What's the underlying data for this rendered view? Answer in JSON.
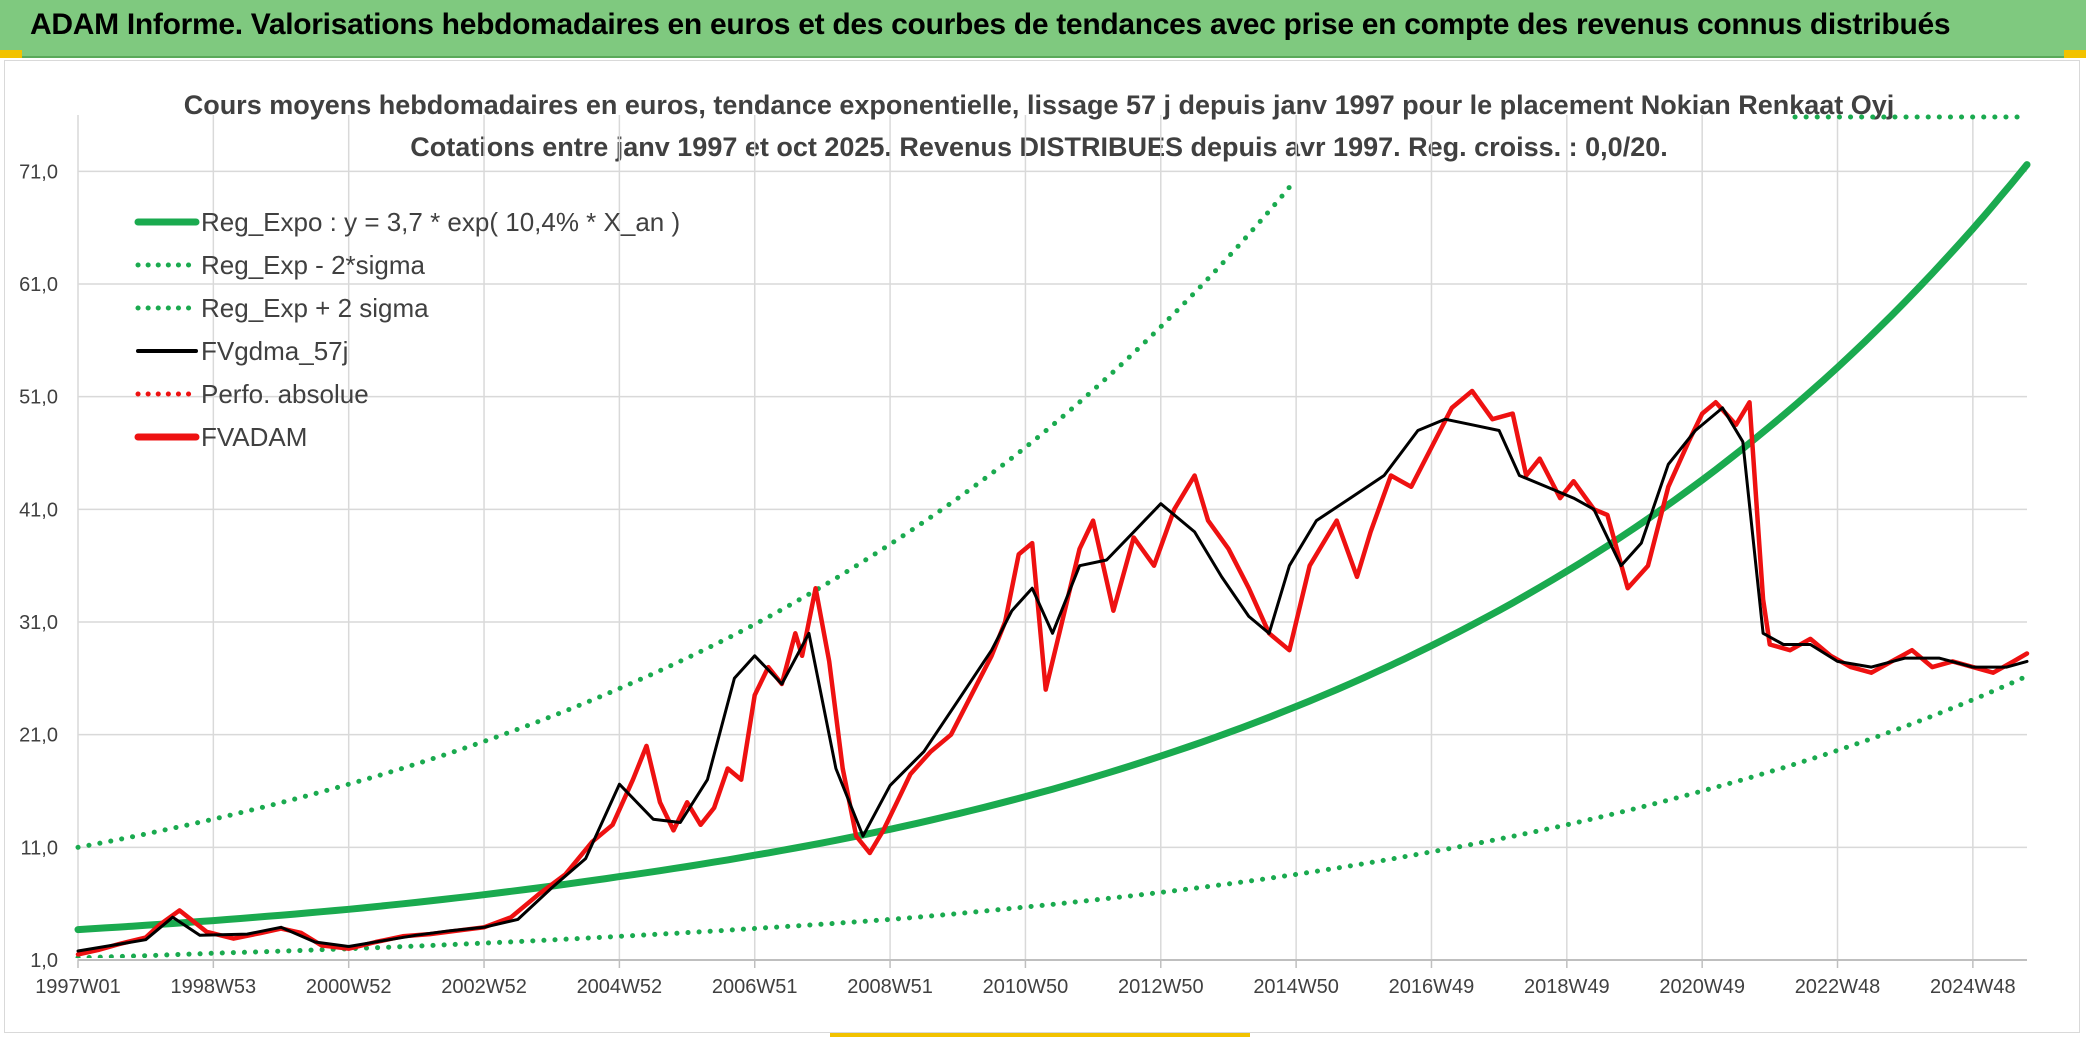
{
  "header": {
    "title": "ADAM Informe. Valorisations hebdomadaires en euros et des courbes de tendances avec prise en compte des revenus connus distribués"
  },
  "colors": {
    "header_bg": "#7fc97f",
    "reg_green": "#1aaa4f",
    "series_black": "#000000",
    "series_red": "#ee1111",
    "grid": "#d9d9d9",
    "accent": "#f2c200"
  },
  "chart_data": {
    "type": "line",
    "title": "Cours moyens hebdomadaires en euros, tendance exponentielle, lissage 57 j depuis janv 1997 pour le placement Nokian Renkaat Oyj",
    "subtitle": "Cotations entre janv 1997 et oct 2025. Revenus DISTRIBUES depuis avr 1997. Reg. croiss. : 0,0/20.",
    "x_range": [
      1997.0,
      2025.8
    ],
    "ylim": [
      1.0,
      76.0
    ],
    "y_ticks": [
      1.0,
      11.0,
      21.0,
      31.0,
      41.0,
      51.0,
      61.0,
      71.0
    ],
    "y_tick_labels": [
      "1,0",
      "11,0",
      "21,0",
      "31,0",
      "41,0",
      "51,0",
      "61,0",
      "71,0"
    ],
    "x_ticks": [
      1997.0,
      1999.0,
      2001.0,
      2003.0,
      2005.0,
      2007.0,
      2009.0,
      2011.0,
      2013.0,
      2015.0,
      2017.0,
      2019.0,
      2021.0,
      2023.0,
      2025.0
    ],
    "x_tick_labels": [
      "1997W01",
      "1998W53",
      "2000W52",
      "2002W52",
      "2004W52",
      "2006W51",
      "2008W51",
      "2010W50",
      "2012W50",
      "2014W50",
      "2016W49",
      "2018W49",
      "2020W49",
      "2022W48",
      "2024W48"
    ],
    "legend": [
      {
        "label": "Reg_Expo : y = 3,7 * exp( 10,4% *  X_an )",
        "style": "solid-thick",
        "color": "#1aaa4f"
      },
      {
        "label": "Reg_Exp - 2*sigma",
        "style": "dotted",
        "color": "#1aaa4f"
      },
      {
        "label": "Reg_Exp + 2 sigma",
        "style": "dotted",
        "color": "#1aaa4f"
      },
      {
        "label": "FVgdma_57j",
        "style": "solid",
        "color": "#000000"
      },
      {
        "label": "Perfo. absolue",
        "style": "dotted",
        "color": "#ee1111"
      },
      {
        "label": "FVADAM",
        "style": "solid-thick",
        "color": "#ee1111"
      }
    ],
    "series": [
      {
        "name": "Reg_Expo",
        "x": [
          1997.0,
          1999.0,
          2001.0,
          2003.0,
          2005.0,
          2007.0,
          2009.0,
          2011.0,
          2013.0,
          2015.0,
          2017.0,
          2019.0,
          2021.0,
          2023.0,
          2025.0,
          2025.8
        ],
        "values": [
          3.7,
          4.5,
          5.5,
          6.8,
          8.4,
          10.3,
          12.6,
          15.5,
          19.1,
          23.5,
          28.9,
          35.5,
          43.6,
          53.6,
          65.9,
          71.6
        ]
      },
      {
        "name": "Reg_Exp - 2*sigma",
        "x": [
          1997.0,
          1999.0,
          2001.0,
          2003.0,
          2005.0,
          2007.0,
          2009.0,
          2011.0,
          2013.0,
          2015.0,
          2017.0,
          2019.0,
          2021.0,
          2023.0,
          2025.0,
          2025.8
        ],
        "values": [
          1.2,
          1.6,
          2.0,
          2.5,
          3.1,
          3.8,
          4.6,
          5.7,
          7.0,
          8.6,
          10.6,
          13.0,
          16.0,
          19.6,
          24.1,
          26.2
        ]
      },
      {
        "name": "Reg_Exp + 2 sigma",
        "x": [
          1997.0,
          1999.0,
          2001.0,
          2003.0,
          2005.0,
          2007.0,
          2009.0,
          2011.0,
          2013.0,
          2015.0
        ],
        "values": [
          11.0,
          13.5,
          16.6,
          20.4,
          25.1,
          30.8,
          37.9,
          46.5,
          57.2,
          70.3
        ]
      },
      {
        "name": "FVgdma_57j",
        "x": [
          1997.0,
          1997.5,
          1998.0,
          1998.4,
          1998.8,
          1999.5,
          2000.0,
          2000.5,
          2001.0,
          2001.5,
          2002.0,
          2002.5,
          2003.0,
          2003.5,
          2004.0,
          2004.5,
          2005.0,
          2005.5,
          2005.9,
          2006.3,
          2006.7,
          2007.0,
          2007.4,
          2007.8,
          2008.2,
          2008.6,
          2009.0,
          2009.5,
          2010.0,
          2010.5,
          2010.8,
          2011.1,
          2011.4,
          2011.8,
          2012.2,
          2012.6,
          2013.0,
          2013.5,
          2013.9,
          2014.3,
          2014.6,
          2014.9,
          2015.3,
          2015.8,
          2016.3,
          2016.8,
          2017.2,
          2017.6,
          2018.0,
          2018.3,
          2018.7,
          2019.1,
          2019.4,
          2019.8,
          2020.1,
          2020.5,
          2020.9,
          2021.3,
          2021.6,
          2021.9,
          2022.2,
          2022.6,
          2023.0,
          2023.5,
          2024.0,
          2024.5,
          2025.0,
          2025.5,
          2025.8
        ],
        "values": [
          1.8,
          2.3,
          2.8,
          4.8,
          3.2,
          3.3,
          3.9,
          2.6,
          2.2,
          2.7,
          3.2,
          3.6,
          3.9,
          4.6,
          7.4,
          10.0,
          16.6,
          13.5,
          13.2,
          17.0,
          26.0,
          28.0,
          25.5,
          30.0,
          18.0,
          12.0,
          16.5,
          19.5,
          24.0,
          28.5,
          32.0,
          34.0,
          30.0,
          36.0,
          36.5,
          39.0,
          41.5,
          39.0,
          35.0,
          31.5,
          30.0,
          36.0,
          40.0,
          42.0,
          44.0,
          48.0,
          49.0,
          48.5,
          48.0,
          44.0,
          43.0,
          42.0,
          41.0,
          36.0,
          38.0,
          45.0,
          48.0,
          50.0,
          47.0,
          30.0,
          29.0,
          29.0,
          27.5,
          27.0,
          27.8,
          27.8,
          27.0,
          27.0,
          27.5
        ]
      },
      {
        "name": "FVADAM",
        "x": [
          1997.0,
          1997.3,
          1997.6,
          1998.0,
          1998.2,
          1998.5,
          1998.9,
          1999.3,
          1999.7,
          2000.0,
          2000.3,
          2000.6,
          2001.0,
          2001.4,
          2001.8,
          2002.2,
          2002.6,
          2003.0,
          2003.4,
          2003.8,
          2004.2,
          2004.6,
          2004.9,
          2005.2,
          2005.4,
          2005.6,
          2005.8,
          2006.0,
          2006.2,
          2006.4,
          2006.6,
          2006.8,
          2007.0,
          2007.2,
          2007.4,
          2007.6,
          2007.7,
          2007.9,
          2008.1,
          2008.3,
          2008.5,
          2008.7,
          2008.9,
          2009.1,
          2009.3,
          2009.6,
          2009.9,
          2010.2,
          2010.5,
          2010.7,
          2010.9,
          2011.1,
          2011.3,
          2011.5,
          2011.8,
          2012.0,
          2012.3,
          2012.6,
          2012.9,
          2013.2,
          2013.5,
          2013.7,
          2014.0,
          2014.3,
          2014.6,
          2014.9,
          2015.2,
          2015.4,
          2015.6,
          2015.9,
          2016.1,
          2016.4,
          2016.7,
          2017.0,
          2017.3,
          2017.6,
          2017.9,
          2018.2,
          2018.4,
          2018.6,
          2018.9,
          2019.1,
          2019.4,
          2019.6,
          2019.9,
          2020.2,
          2020.5,
          2020.8,
          2021.0,
          2021.2,
          2021.5,
          2021.7,
          2021.9,
          2022.0,
          2022.3,
          2022.6,
          2022.9,
          2023.2,
          2023.5,
          2023.8,
          2024.1,
          2024.4,
          2024.7,
          2025.0,
          2025.3,
          2025.6,
          2025.8
        ],
        "values": [
          1.5,
          1.9,
          2.4,
          3.0,
          4.1,
          5.4,
          3.5,
          2.9,
          3.4,
          3.8,
          3.4,
          2.3,
          2.0,
          2.6,
          3.1,
          3.3,
          3.6,
          3.9,
          4.8,
          6.8,
          8.6,
          11.5,
          13.0,
          17.0,
          20.0,
          15.0,
          12.5,
          15.0,
          13.0,
          14.5,
          18.0,
          17.0,
          24.5,
          27.0,
          25.5,
          30.0,
          28.0,
          34.0,
          27.5,
          18.0,
          12.0,
          10.5,
          12.5,
          15.0,
          17.5,
          19.5,
          21.0,
          24.5,
          28.0,
          31.0,
          37.0,
          38.0,
          25.0,
          30.0,
          37.5,
          40.0,
          32.0,
          38.5,
          36.0,
          41.0,
          44.0,
          40.0,
          37.5,
          34.0,
          30.0,
          28.5,
          36.0,
          38.0,
          40.0,
          35.0,
          39.0,
          44.0,
          43.0,
          46.5,
          50.0,
          51.5,
          49.0,
          49.5,
          44.0,
          45.5,
          42.0,
          43.5,
          41.0,
          40.5,
          34.0,
          36.0,
          43.0,
          47.0,
          49.5,
          50.5,
          48.5,
          50.5,
          33.0,
          29.0,
          28.5,
          29.5,
          28.0,
          27.0,
          26.5,
          27.5,
          28.5,
          27.0,
          27.5,
          27.0,
          26.5,
          27.5,
          28.2
        ]
      }
    ]
  }
}
